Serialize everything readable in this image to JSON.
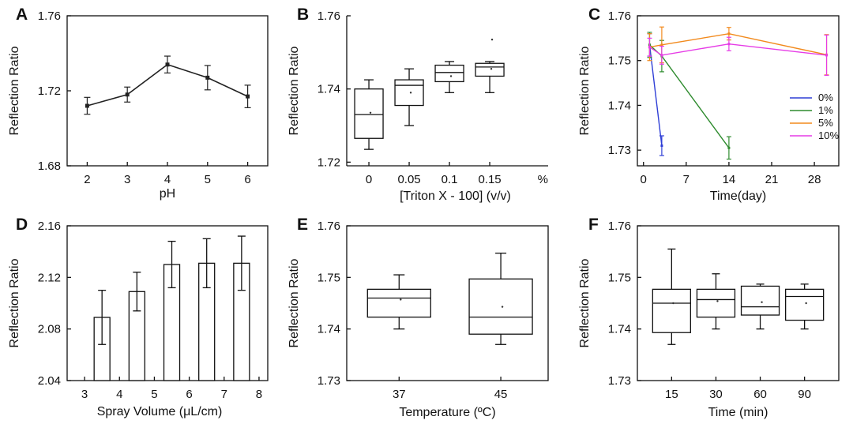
{
  "chart_data": [
    {
      "panel_label": "A",
      "type": "line",
      "ylabel": "Reflection Ratio",
      "xlabel": "pH",
      "x": [
        2,
        3,
        4,
        5,
        6
      ],
      "xticks": [
        "2",
        "3",
        "4",
        "5",
        "6"
      ],
      "xlim": [
        1.5,
        6.5
      ],
      "ylim": [
        1.68,
        1.76
      ],
      "yticks": [
        "1.68",
        "1.72",
        "1.76"
      ],
      "series": [
        {
          "name": "pH",
          "color": "#222222",
          "values": [
            1.712,
            1.718,
            1.734,
            1.727,
            1.717
          ],
          "errors": [
            0.0045,
            0.004,
            0.0045,
            0.0065,
            0.006
          ]
        }
      ]
    },
    {
      "panel_label": "B",
      "type": "box",
      "ylabel": "Reflection Ratio",
      "xlabel": "[Triton X - 100] (v/v)",
      "unit_label": "%",
      "categories": [
        "0",
        "0.05",
        "0.1",
        "0.15"
      ],
      "ylim": [
        1.719,
        1.76
      ],
      "yticks": [
        "1.72",
        "1.74",
        "1.76"
      ],
      "boxes": [
        {
          "whisker_low": 1.7235,
          "q1": 1.7265,
          "median": 1.733,
          "q3": 1.74,
          "whisker_high": 1.7425,
          "mean": 1.7335
        },
        {
          "whisker_low": 1.73,
          "q1": 1.7355,
          "median": 1.741,
          "q3": 1.7425,
          "whisker_high": 1.7455,
          "mean": 1.739
        },
        {
          "whisker_low": 1.739,
          "q1": 1.742,
          "median": 1.7445,
          "q3": 1.7465,
          "whisker_high": 1.7475,
          "mean": 1.7435
        },
        {
          "whisker_low": 1.739,
          "q1": 1.7435,
          "median": 1.746,
          "q3": 1.747,
          "whisker_high": 1.7475,
          "mean": 1.7455,
          "outlier": 1.7535
        }
      ]
    },
    {
      "panel_label": "C",
      "type": "line",
      "ylabel": "Reflection Ratio",
      "xlabel": "Time(day)",
      "xlim": [
        -1,
        32
      ],
      "xticks": [
        "0",
        "7",
        "14",
        "21",
        "28"
      ],
      "xtick_values": [
        0,
        7,
        14,
        21,
        28
      ],
      "ylim": [
        1.7265,
        1.76
      ],
      "yticks": [
        "1.73",
        "1.74",
        "1.75",
        "1.76"
      ],
      "legend_position": "right",
      "series": [
        {
          "name": "0%",
          "color": "#2f3fd6",
          "x": [
            1,
            3
          ],
          "values": [
            1.7535,
            1.731
          ],
          "errors": [
            0.0025,
            0.0022
          ]
        },
        {
          "name": "1%",
          "color": "#2e8b2e",
          "x": [
            1,
            3,
            14
          ],
          "values": [
            1.7535,
            1.751,
            1.7305
          ],
          "errors": [
            0.0028,
            0.0035,
            0.0025
          ]
        },
        {
          "name": "5%",
          "color": "#f28a1d",
          "x": [
            1,
            3,
            14,
            30
          ],
          "values": [
            1.753,
            1.7535,
            1.756,
            1.7513
          ],
          "errors": [
            0.003,
            0.004,
            0.0014,
            0.0045
          ]
        },
        {
          "name": "10%",
          "color": "#e63ce6",
          "x": [
            1,
            3,
            14,
            30
          ],
          "values": [
            1.753,
            1.7512,
            1.7537,
            1.7512
          ],
          "errors": [
            0.002,
            0.002,
            0.0015,
            0.0045
          ]
        }
      ]
    },
    {
      "panel_label": "D",
      "type": "bar",
      "ylabel": "Reflection Ratio",
      "xlabel": "Spray Volume (μL/cm)",
      "xlim": [
        2.5,
        8.25
      ],
      "xticks": [
        "3",
        "4",
        "5",
        "6",
        "7",
        "8"
      ],
      "xtick_values": [
        3,
        4,
        5,
        6,
        7,
        8
      ],
      "x": [
        3.5,
        4.5,
        5.5,
        6.5,
        7.5
      ],
      "values": [
        2.089,
        2.109,
        2.13,
        2.131,
        2.131
      ],
      "errors": [
        0.021,
        0.015,
        0.018,
        0.019,
        0.021
      ],
      "ylim": [
        2.04,
        2.16
      ],
      "yticks": [
        "2.04",
        "2.08",
        "2.12",
        "2.16"
      ]
    },
    {
      "panel_label": "E",
      "type": "box",
      "ylabel": "Reflection Ratio",
      "xlabel": "Temperature (ºC)",
      "categories": [
        "37",
        "45"
      ],
      "ylim": [
        1.73,
        1.76
      ],
      "yticks": [
        "1.73",
        "1.74",
        "1.75",
        "1.76"
      ],
      "boxes": [
        {
          "whisker_low": 1.74,
          "q1": 1.7423,
          "median": 1.746,
          "q3": 1.7477,
          "whisker_high": 1.7505,
          "mean": 1.7457
        },
        {
          "whisker_low": 1.737,
          "q1": 1.739,
          "median": 1.7423,
          "q3": 1.7497,
          "whisker_high": 1.7547,
          "mean": 1.7443
        }
      ]
    },
    {
      "panel_label": "F",
      "type": "box",
      "ylabel": "Reflection Ratio",
      "xlabel": "Time (min)",
      "categories": [
        "15",
        "30",
        "60",
        "90"
      ],
      "ylim": [
        1.73,
        1.76
      ],
      "yticks": [
        "1.73",
        "1.74",
        "1.75",
        "1.76"
      ],
      "boxes": [
        {
          "whisker_low": 1.737,
          "q1": 1.7393,
          "median": 1.745,
          "q3": 1.7477,
          "whisker_high": 1.7555,
          "mean": 1.745
        },
        {
          "whisker_low": 1.74,
          "q1": 1.7423,
          "median": 1.7457,
          "q3": 1.7477,
          "whisker_high": 1.7507,
          "mean": 1.7454
        },
        {
          "whisker_low": 1.74,
          "q1": 1.7427,
          "median": 1.7443,
          "q3": 1.7483,
          "whisker_high": 1.7487,
          "mean": 1.7452
        },
        {
          "whisker_low": 1.74,
          "q1": 1.7417,
          "median": 1.7463,
          "q3": 1.7477,
          "whisker_high": 1.7487,
          "mean": 1.745
        }
      ]
    }
  ]
}
